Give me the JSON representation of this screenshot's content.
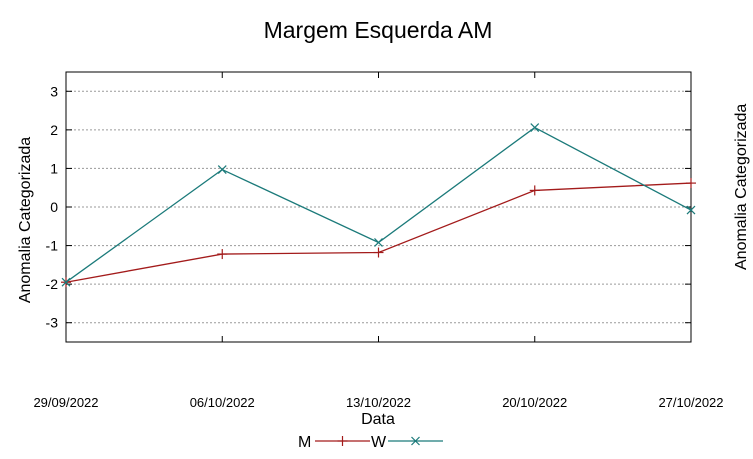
{
  "chart_data": {
    "type": "line",
    "title": "Margem Esquerda AM",
    "xlabel": "Data",
    "ylabel": "Anomalia Categorizada",
    "clipped_right_ylabel": "Anomalia Categorizada",
    "x": [
      "29/09/2022",
      "06/10/2022",
      "13/10/2022",
      "20/10/2022",
      "27/10/2022"
    ],
    "x_tick_labels": [
      "29/09/2022",
      "06/10/2022",
      "13/10/2022",
      "20/10/2022",
      "27/10/2022"
    ],
    "ylim": [
      -3.5,
      3.5
    ],
    "y_ticks": [
      -3,
      -2,
      -1,
      0,
      1,
      2,
      3
    ],
    "grid": true,
    "legend_position": "bottom-center",
    "series": [
      {
        "name": "M",
        "color": "#a31b1b",
        "marker": "plus",
        "values": [
          -1.95,
          -1.22,
          -1.18,
          0.43,
          0.62
        ]
      },
      {
        "name": "W",
        "color": "#1b7a7a",
        "marker": "x",
        "values": [
          -1.95,
          0.97,
          -0.92,
          2.06,
          -0.08
        ]
      }
    ]
  }
}
